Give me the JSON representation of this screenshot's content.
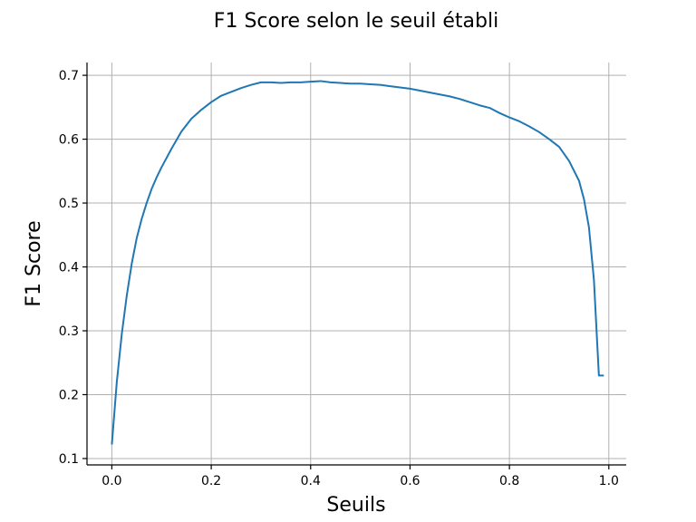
{
  "chart_data": {
    "type": "line",
    "title": "F1 Score selon le seuil établi",
    "xlabel": "Seuils",
    "ylabel": "F1 Score",
    "xlim": [
      -0.05,
      1.035
    ],
    "ylim": [
      0.09,
      0.72
    ],
    "xticks": [
      0.0,
      0.2,
      0.4,
      0.6,
      0.8,
      1.0
    ],
    "xtick_labels": [
      "0.0",
      "0.2",
      "0.4",
      "0.6",
      "0.8",
      "1.0"
    ],
    "yticks": [
      0.1,
      0.2,
      0.3,
      0.4,
      0.5,
      0.6,
      0.7
    ],
    "ytick_labels": [
      "0.1",
      "0.2",
      "0.3",
      "0.4",
      "0.5",
      "0.6",
      "0.7"
    ],
    "grid": true,
    "series": [
      {
        "color": "#1f77b4",
        "x": [
          0.0,
          0.01,
          0.02,
          0.03,
          0.04,
          0.05,
          0.06,
          0.07,
          0.08,
          0.09,
          0.1,
          0.12,
          0.14,
          0.16,
          0.18,
          0.2,
          0.22,
          0.24,
          0.26,
          0.28,
          0.3,
          0.32,
          0.34,
          0.36,
          0.38,
          0.4,
          0.42,
          0.44,
          0.46,
          0.48,
          0.5,
          0.52,
          0.54,
          0.56,
          0.58,
          0.6,
          0.62,
          0.64,
          0.66,
          0.68,
          0.7,
          0.72,
          0.74,
          0.76,
          0.78,
          0.8,
          0.82,
          0.84,
          0.86,
          0.88,
          0.9,
          0.92,
          0.94,
          0.95,
          0.96,
          0.97,
          0.98,
          0.99
        ],
        "y": [
          0.122,
          0.22,
          0.295,
          0.355,
          0.405,
          0.445,
          0.475,
          0.5,
          0.522,
          0.54,
          0.556,
          0.585,
          0.612,
          0.632,
          0.646,
          0.658,
          0.668,
          0.674,
          0.68,
          0.685,
          0.689,
          0.689,
          0.688,
          0.689,
          0.689,
          0.69,
          0.691,
          0.689,
          0.688,
          0.687,
          0.687,
          0.686,
          0.685,
          0.683,
          0.681,
          0.679,
          0.676,
          0.673,
          0.67,
          0.667,
          0.663,
          0.658,
          0.653,
          0.649,
          0.641,
          0.634,
          0.628,
          0.62,
          0.611,
          0.6,
          0.588,
          0.566,
          0.535,
          0.506,
          0.462,
          0.38,
          0.23,
          0.23
        ]
      }
    ]
  }
}
